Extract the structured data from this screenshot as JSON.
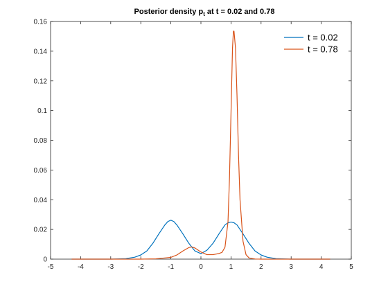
{
  "chart_data": {
    "type": "line",
    "title": {
      "main": "Posterior density p",
      "subscript": "t",
      "rest": " at t = 0.02 and 0.78"
    },
    "xlabel": "",
    "ylabel": "",
    "xlim": [
      -5,
      5
    ],
    "ylim": [
      0,
      0.16
    ],
    "xticks": [
      -5,
      -4,
      -3,
      -2,
      -1,
      0,
      1,
      2,
      3,
      4,
      5
    ],
    "yticks": [
      0,
      0.02,
      0.04,
      0.06,
      0.08,
      0.1,
      0.12,
      0.14,
      0.16
    ],
    "xtick_labels": [
      "-5",
      "-4",
      "-3",
      "-2",
      "-1",
      "0",
      "1",
      "2",
      "3",
      "4",
      "5"
    ],
    "ytick_labels": [
      "0",
      "0.02",
      "0.04",
      "0.06",
      "0.08",
      "0.1",
      "0.12",
      "0.14",
      "0.16"
    ],
    "grid": false,
    "legend_position": "top-right",
    "series": [
      {
        "name": "t = 0.02",
        "color": "#0072BD",
        "x": [
          -4.3,
          -3.5,
          -3.0,
          -2.5,
          -2.2,
          -2.0,
          -1.8,
          -1.6,
          -1.4,
          -1.2,
          -1.1,
          -1.0,
          -0.9,
          -0.8,
          -0.6,
          -0.4,
          -0.2,
          0.0,
          0.2,
          0.4,
          0.6,
          0.8,
          0.9,
          1.0,
          1.1,
          1.2,
          1.4,
          1.6,
          1.8,
          2.0,
          2.2,
          2.5,
          3.0,
          3.5,
          4.3
        ],
        "y": [
          0.0,
          0.0,
          0.0,
          0.0003,
          0.0013,
          0.0028,
          0.0055,
          0.0106,
          0.017,
          0.023,
          0.0253,
          0.0262,
          0.0253,
          0.023,
          0.017,
          0.0106,
          0.0055,
          0.0037,
          0.006,
          0.0106,
          0.017,
          0.023,
          0.0245,
          0.025,
          0.0245,
          0.023,
          0.017,
          0.0106,
          0.0055,
          0.0028,
          0.0013,
          0.0003,
          0.0,
          0.0,
          0.0
        ]
      },
      {
        "name": "t = 0.78",
        "color": "#D95319",
        "x": [
          -4.3,
          -2.0,
          -1.5,
          -1.0,
          -0.8,
          -0.6,
          -0.4,
          -0.3,
          -0.2,
          0.0,
          0.2,
          0.4,
          0.6,
          0.7,
          0.8,
          0.9,
          0.95,
          1.0,
          1.05,
          1.08,
          1.1,
          1.15,
          1.2,
          1.25,
          1.3,
          1.4,
          1.5,
          1.6,
          1.8,
          2.0,
          2.5,
          4.3
        ],
        "y": [
          0.0,
          0.0,
          0.0002,
          0.0012,
          0.0028,
          0.0055,
          0.0078,
          0.0082,
          0.0075,
          0.0048,
          0.003,
          0.003,
          0.0038,
          0.0045,
          0.008,
          0.025,
          0.055,
          0.098,
          0.142,
          0.1535,
          0.1535,
          0.142,
          0.11,
          0.07,
          0.04,
          0.012,
          0.003,
          0.0008,
          0.0001,
          0.0,
          0.0,
          0.0
        ]
      }
    ]
  }
}
